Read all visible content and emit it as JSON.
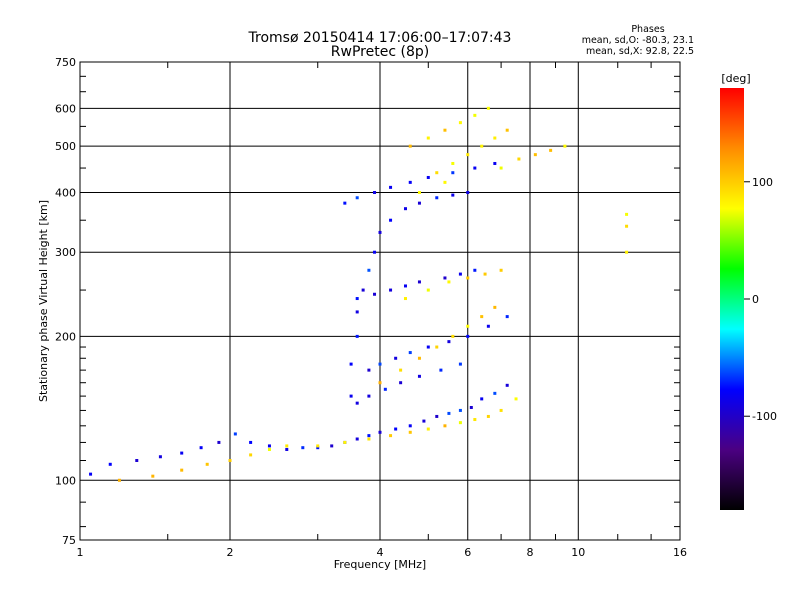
{
  "chart_data": {
    "type": "scatter",
    "title": "Tromsø 20150414 17:06:00–17:07:43",
    "subtitle": "RwPretec (8p)",
    "xlabel": "Frequency [MHz]",
    "ylabel": "Stationary phase Virtual Height [km]",
    "x_scale": "log",
    "y_scale": "log",
    "xlim": [
      1,
      16
    ],
    "ylim": [
      75,
      750
    ],
    "x_ticks": [
      1,
      2,
      4,
      6,
      8,
      10,
      16
    ],
    "x_tick_labels": [
      "1",
      "2",
      "4",
      "6",
      "8",
      "10",
      "16"
    ],
    "y_ticks": [
      75,
      100,
      200,
      300,
      400,
      500,
      600,
      750
    ],
    "y_tick_labels": [
      "75",
      "100",
      "200",
      "300",
      "400",
      "500",
      "600",
      "750"
    ],
    "grid": true,
    "phase_stats": {
      "heading": "Phases",
      "line_o": "mean, sd,O: -80.3, 23.1",
      "line_x": "mean, sd,X:  92.8, 22.5"
    },
    "colorbar": {
      "label": "[deg]",
      "ticks": [
        100,
        0,
        -100
      ],
      "tick_labels": [
        "100",
        "0",
        "-100"
      ],
      "range": [
        -180,
        180
      ],
      "colormap": [
        "#000000",
        "#4b0082",
        "#0000ff",
        "#00ffff",
        "#00ff00",
        "#ffff00",
        "#ff8c00",
        "#ff0000"
      ]
    },
    "series": [
      {
        "name": "O",
        "color_phase": -80,
        "x": [
          1.05,
          1.15,
          1.3,
          1.45,
          1.6,
          1.75,
          1.9,
          2.05,
          2.2,
          2.4,
          2.6,
          2.8,
          3.0,
          3.2,
          3.4,
          3.6,
          3.8,
          4.0,
          4.3,
          4.6,
          4.9,
          5.2,
          5.5,
          5.8,
          6.1,
          6.4,
          6.8,
          7.2,
          3.5,
          3.5,
          3.6,
          3.6,
          3.7,
          3.8,
          3.9,
          4.0,
          4.2,
          4.5,
          4.8,
          5.2,
          5.6,
          6.0,
          3.8,
          4.0,
          4.3,
          4.6,
          5.0,
          5.5,
          6.0,
          6.6,
          7.2,
          3.6,
          3.9,
          4.2,
          4.5,
          4.8,
          5.4,
          5.8,
          6.2,
          3.4,
          3.6,
          3.9,
          4.2,
          4.6,
          5.0,
          5.6,
          6.2,
          6.8,
          3.6,
          3.8,
          4.1,
          4.4,
          4.8,
          5.3,
          5.8
        ],
        "y": [
          103,
          108,
          110,
          112,
          114,
          117,
          120,
          125,
          120,
          118,
          116,
          117,
          117,
          118,
          120,
          122,
          124,
          126,
          128,
          130,
          133,
          136,
          138,
          140,
          142,
          148,
          152,
          158,
          150,
          175,
          200,
          225,
          250,
          275,
          300,
          330,
          350,
          370,
          380,
          390,
          395,
          400,
          170,
          175,
          180,
          185,
          190,
          195,
          200,
          210,
          220,
          240,
          245,
          250,
          255,
          260,
          265,
          270,
          275,
          380,
          390,
          400,
          410,
          420,
          430,
          440,
          450,
          460,
          145,
          150,
          155,
          160,
          165,
          170,
          175
        ]
      },
      {
        "name": "X",
        "color_phase": 93,
        "x": [
          1.2,
          1.4,
          1.6,
          1.8,
          2.0,
          2.2,
          2.4,
          2.6,
          3.0,
          3.4,
          3.8,
          4.2,
          4.6,
          5.0,
          5.4,
          5.8,
          6.2,
          6.6,
          7.0,
          7.5,
          4.0,
          4.4,
          4.8,
          5.2,
          5.6,
          6.0,
          6.4,
          6.8,
          4.5,
          5.0,
          5.5,
          6.0,
          6.5,
          7.0,
          4.6,
          5.0,
          5.4,
          5.8,
          6.2,
          6.6,
          7.0,
          7.6,
          8.2,
          8.8,
          9.4,
          12.5,
          12.5,
          12.5,
          5.2,
          5.6,
          6.0,
          6.4,
          6.8,
          7.2,
          4.8,
          5.4
        ],
        "y": [
          100,
          102,
          105,
          108,
          110,
          113,
          116,
          118,
          118,
          120,
          122,
          124,
          126,
          128,
          130,
          132,
          134,
          136,
          140,
          148,
          160,
          170,
          180,
          190,
          200,
          210,
          220,
          230,
          240,
          250,
          260,
          265,
          270,
          275,
          500,
          520,
          540,
          560,
          580,
          600,
          450,
          470,
          480,
          490,
          500,
          340,
          360,
          300,
          440,
          460,
          480,
          500,
          520,
          540,
          400,
          420
        ]
      }
    ]
  }
}
